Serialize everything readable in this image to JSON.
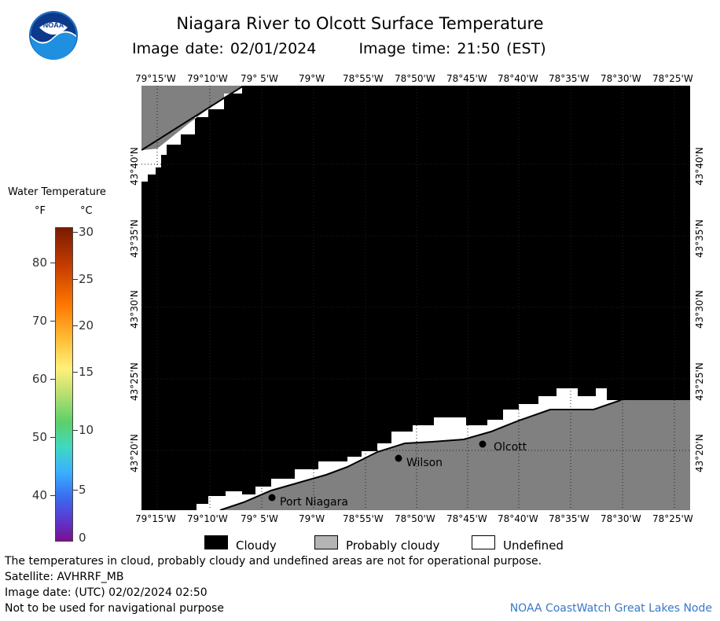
{
  "title": "Niagara River to Olcott Surface Temperature",
  "image_date_label": "Image date: 02/01/2024",
  "image_time_label": "Image time: 21:50 (EST)",
  "logo_text": "NOAA",
  "lon_ticks": [
    "79°15'W",
    "79°10'W",
    "79° 5'W",
    "79°W",
    "78°55'W",
    "78°50'W",
    "78°45'W",
    "78°40'W",
    "78°35'W",
    "78°30'W",
    "78°25'W"
  ],
  "lat_ticks": [
    "43°40'N",
    "43°35'N",
    "43°30'N",
    "43°25'N",
    "43°20'N"
  ],
  "places": {
    "port_niagara": "Port Niagara",
    "wilson": "Wilson",
    "olcott": "Olcott"
  },
  "legend": {
    "title": "Water Temperature",
    "unit_f": "°F",
    "unit_c": "°C",
    "f_ticks": [
      "80",
      "70",
      "60",
      "50",
      "40"
    ],
    "c_ticks": [
      "30",
      "25",
      "20",
      "15",
      "10",
      "5",
      "0"
    ]
  },
  "key": {
    "cloudy": "Cloudy",
    "probably_cloudy": "Probably cloudy",
    "undefined": "Undefined"
  },
  "colors": {
    "cloudy": "#000000",
    "probably_cloudy": "#808080",
    "undefined": "#ffffff",
    "credit": "#3a78c8"
  },
  "footer": {
    "disclaimer": "The temperatures in cloud, probably cloudy and undefined areas are not for operational purpose.",
    "satellite": "Satellite: AVHRRF_MB",
    "utc_date": "Image date: (UTC) 02/02/2024  02:50",
    "nav_warning": "Not to be used for navigational purpose",
    "credit": "NOAA CoastWatch Great Lakes Node"
  }
}
